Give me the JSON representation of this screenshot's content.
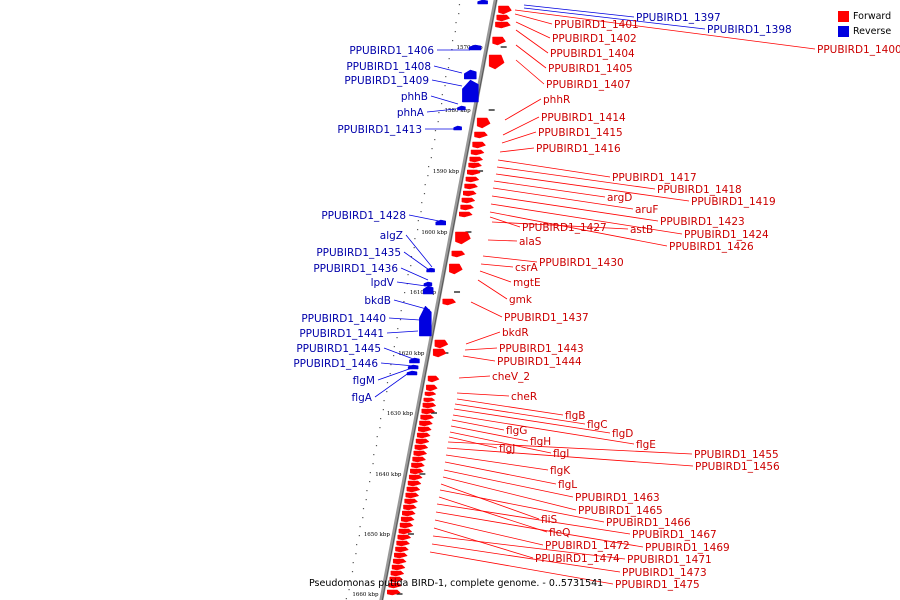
{
  "colors": {
    "forward": "#ff0000",
    "reverse": "#0000e0",
    "forward_label": "#cc0000",
    "reverse_label": "#0000aa",
    "axis": "#888888"
  },
  "legend": {
    "forward": "Forward",
    "reverse": "Reverse"
  },
  "caption": "Pseudomonas putida BIRD-1, complete genome. - 0..5731541",
  "ticks": [
    "1570 kbp",
    "1580 kbp",
    "1590 kbp",
    "1600 kbp",
    "1610 kbp",
    "1620 kbp",
    "1630 kbp",
    "1640 kbp",
    "1650 kbp",
    "1660 kbp"
  ],
  "reverse_labels": [
    "PPUBIRD1_1397",
    "PPUBIRD1_1398",
    "PPUBIRD1_1406",
    "PPUBIRD1_1408",
    "PPUBIRD1_1409",
    "phhB",
    "phhA",
    "PPUBIRD1_1413",
    "PPUBIRD1_1428",
    "algZ",
    "PPUBIRD1_1435",
    "PPUBIRD1_1436",
    "lpdV",
    "bkdB",
    "PPUBIRD1_1440",
    "PPUBIRD1_1441",
    "PPUBIRD1_1445",
    "PPUBIRD1_1446",
    "flgM",
    "flgA"
  ],
  "forward_labels": [
    "PPUBIRD1_1400",
    "PPUBIRD1_1401",
    "PPUBIRD1_1402",
    "PPUBIRD1_1404",
    "PPUBIRD1_1405",
    "PPUBIRD1_1407",
    "phhR",
    "PPUBIRD1_1414",
    "PPUBIRD1_1415",
    "PPUBIRD1_1416",
    "PPUBIRD1_1417",
    "PPUBIRD1_1418",
    "PPUBIRD1_1419",
    "argD",
    "aruF",
    "PPUBIRD1_1423",
    "PPUBIRD1_1424",
    "PPUBIRD1_1426",
    "PPUBIRD1_1427",
    "astB",
    "alaS",
    "PPUBIRD1_1430",
    "csrA",
    "mgtE",
    "gmk",
    "PPUBIRD1_1437",
    "bkdR",
    "PPUBIRD1_1443",
    "PPUBIRD1_1444",
    "cheV_2",
    "cheR",
    "flgB",
    "flgC",
    "flgD",
    "flgE",
    "flgG",
    "flgH",
    "flgI",
    "flgJ",
    "PPUBIRD1_1455",
    "PPUBIRD1_1456",
    "flgK",
    "flgL",
    "PPUBIRD1_1463",
    "PPUBIRD1_1465",
    "fliS",
    "PPUBIRD1_1466",
    "fleQ",
    "PPUBIRD1_1467",
    "PPUBIRD1_1469",
    "PPUBIRD1_1472",
    "PPUBIRD1_1474",
    "PPUBIRD1_1471",
    "PPUBIRD1_1473",
    "PPUBIRD1_1475"
  ]
}
